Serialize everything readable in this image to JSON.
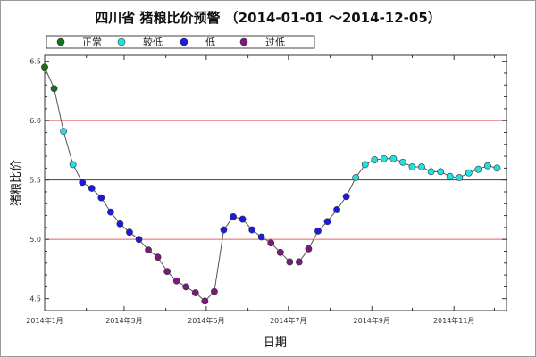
{
  "chart_data": {
    "type": "line",
    "title": "四川省 猪粮比价预警 （2014-01-01 ～2014-12-05）",
    "xlabel": "日期",
    "ylabel": "猪粮比价",
    "ylim": [
      4.4,
      6.55
    ],
    "yticks": [
      4.5,
      5.0,
      5.5,
      6.0,
      6.5
    ],
    "ytick_labels": [
      "4.5",
      "5.0",
      "5.5",
      "6.0",
      "6.5"
    ],
    "xlim": [
      "2014-01-01",
      "2014-12-10"
    ],
    "xticks": [
      "2014-01-01",
      "2014-03-01",
      "2014-05-01",
      "2014-07-01",
      "2014-09-01",
      "2014-11-01"
    ],
    "xtick_labels": [
      "2014年1月",
      "2014年3月",
      "2014年5月",
      "2014年7月",
      "2014年9月",
      "2014年11月"
    ],
    "reference_lines": [
      {
        "y": 6.0,
        "color": "#e06060"
      },
      {
        "y": 5.5,
        "color": "#404040"
      },
      {
        "y": 5.0,
        "color": "#e06060"
      }
    ],
    "legend": {
      "position": "top-left",
      "entries": [
        {
          "label": "正常",
          "color": "#1a6e1a"
        },
        {
          "label": "较低",
          "color": "#22e0e0"
        },
        {
          "label": "低",
          "color": "#1a1ae0"
        },
        {
          "label": "过低",
          "color": "#7a1a7a"
        }
      ]
    },
    "line_color": "#555555",
    "points": [
      {
        "x": "2014-01-01",
        "y": 6.45,
        "level": "正常"
      },
      {
        "x": "2014-01-08",
        "y": 6.27,
        "level": "正常"
      },
      {
        "x": "2014-01-15",
        "y": 5.91,
        "level": "较低"
      },
      {
        "x": "2014-01-22",
        "y": 5.63,
        "level": "较低"
      },
      {
        "x": "2014-01-29",
        "y": 5.48,
        "level": "低"
      },
      {
        "x": "2014-02-05",
        "y": 5.43,
        "level": "低"
      },
      {
        "x": "2014-02-12",
        "y": 5.35,
        "level": "低"
      },
      {
        "x": "2014-02-19",
        "y": 5.23,
        "level": "低"
      },
      {
        "x": "2014-02-26",
        "y": 5.13,
        "level": "低"
      },
      {
        "x": "2014-03-05",
        "y": 5.06,
        "level": "低"
      },
      {
        "x": "2014-03-12",
        "y": 5.0,
        "level": "低"
      },
      {
        "x": "2014-03-19",
        "y": 4.91,
        "level": "过低"
      },
      {
        "x": "2014-03-26",
        "y": 4.85,
        "level": "过低"
      },
      {
        "x": "2014-04-02",
        "y": 4.73,
        "level": "过低"
      },
      {
        "x": "2014-04-09",
        "y": 4.65,
        "level": "过低"
      },
      {
        "x": "2014-04-16",
        "y": 4.6,
        "level": "过低"
      },
      {
        "x": "2014-04-23",
        "y": 4.55,
        "level": "过低"
      },
      {
        "x": "2014-04-30",
        "y": 4.48,
        "level": "过低"
      },
      {
        "x": "2014-05-07",
        "y": 4.56,
        "level": "过低"
      },
      {
        "x": "2014-05-14",
        "y": 5.08,
        "level": "低"
      },
      {
        "x": "2014-05-21",
        "y": 5.19,
        "level": "低"
      },
      {
        "x": "2014-05-28",
        "y": 5.17,
        "level": "低"
      },
      {
        "x": "2014-06-04",
        "y": 5.08,
        "level": "低"
      },
      {
        "x": "2014-06-11",
        "y": 5.02,
        "level": "低"
      },
      {
        "x": "2014-06-18",
        "y": 4.97,
        "level": "过低"
      },
      {
        "x": "2014-06-25",
        "y": 4.89,
        "level": "过低"
      },
      {
        "x": "2014-07-02",
        "y": 4.81,
        "level": "过低"
      },
      {
        "x": "2014-07-09",
        "y": 4.81,
        "level": "过低"
      },
      {
        "x": "2014-07-16",
        "y": 4.92,
        "level": "过低"
      },
      {
        "x": "2014-07-23",
        "y": 5.07,
        "level": "低"
      },
      {
        "x": "2014-07-30",
        "y": 5.15,
        "level": "低"
      },
      {
        "x": "2014-08-06",
        "y": 5.25,
        "level": "低"
      },
      {
        "x": "2014-08-13",
        "y": 5.36,
        "level": "低"
      },
      {
        "x": "2014-08-20",
        "y": 5.52,
        "level": "较低"
      },
      {
        "x": "2014-08-27",
        "y": 5.63,
        "level": "较低"
      },
      {
        "x": "2014-09-03",
        "y": 5.67,
        "level": "较低"
      },
      {
        "x": "2014-09-10",
        "y": 5.68,
        "level": "较低"
      },
      {
        "x": "2014-09-17",
        "y": 5.68,
        "level": "较低"
      },
      {
        "x": "2014-09-24",
        "y": 5.65,
        "level": "较低"
      },
      {
        "x": "2014-10-01",
        "y": 5.61,
        "level": "较低"
      },
      {
        "x": "2014-10-08",
        "y": 5.61,
        "level": "较低"
      },
      {
        "x": "2014-10-15",
        "y": 5.57,
        "level": "较低"
      },
      {
        "x": "2014-10-22",
        "y": 5.57,
        "level": "较低"
      },
      {
        "x": "2014-10-29",
        "y": 5.53,
        "level": "较低"
      },
      {
        "x": "2014-11-05",
        "y": 5.52,
        "level": "较低"
      },
      {
        "x": "2014-11-12",
        "y": 5.56,
        "level": "较低"
      },
      {
        "x": "2014-11-19",
        "y": 5.59,
        "level": "较低"
      },
      {
        "x": "2014-11-26",
        "y": 5.62,
        "level": "较低"
      },
      {
        "x": "2014-12-03",
        "y": 5.6,
        "level": "较低"
      }
    ]
  }
}
